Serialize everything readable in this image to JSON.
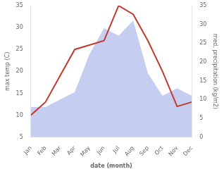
{
  "chart_data": {
    "type": "line",
    "categories": [
      "Jan",
      "Feb",
      "Mar",
      "Apr",
      "May",
      "Jun",
      "Jul",
      "Aug",
      "Sep",
      "Oct",
      "Nov",
      "Dec"
    ],
    "series": [
      {
        "type": "area",
        "axis": "y2",
        "color": "#c5cdf0",
        "values": [
          8,
          8,
          10,
          12,
          22,
          29,
          27,
          31,
          17,
          11,
          13,
          11
        ]
      },
      {
        "type": "line",
        "color": "#c0392b",
        "values": [
          10,
          13,
          19,
          25,
          26,
          27,
          35,
          33,
          27,
          20,
          12,
          13
        ]
      }
    ],
    "xlabel": "date (month)",
    "ylabel": "max temp (C)",
    "y2label": "med. precipitation (kg/m2)",
    "ylim": [
      5,
      35
    ],
    "yticks": [
      5,
      10,
      15,
      20,
      25,
      30,
      35
    ],
    "y2lim": [
      0,
      35
    ],
    "y2ticks": [
      0,
      5,
      10,
      15,
      20,
      25,
      30,
      35
    ],
    "grid": false
  }
}
